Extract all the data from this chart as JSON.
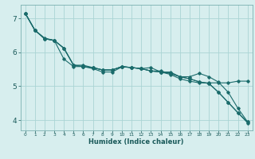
{
  "title": "",
  "xlabel": "Humidex (Indice chaleur)",
  "ylabel": "",
  "background_color": "#d7eeee",
  "grid_color": "#aad4d4",
  "line_color": "#1a6b6b",
  "xlim": [
    -0.5,
    23.5
  ],
  "ylim": [
    3.7,
    7.4
  ],
  "xticks": [
    0,
    1,
    2,
    3,
    4,
    5,
    6,
    7,
    8,
    9,
    10,
    11,
    12,
    13,
    14,
    15,
    16,
    17,
    18,
    19,
    20,
    21,
    22,
    23
  ],
  "yticks": [
    4,
    5,
    6,
    7
  ],
  "lines": [
    {
      "x": [
        0,
        1,
        2,
        3,
        4,
        5,
        6,
        7,
        8,
        9,
        10,
        11,
        12,
        13,
        14,
        15,
        16,
        17,
        18,
        19,
        20,
        21,
        22,
        23
      ],
      "y": [
        7.15,
        6.65,
        6.4,
        6.35,
        5.8,
        5.58,
        5.58,
        5.52,
        5.42,
        5.42,
        5.57,
        5.55,
        5.52,
        5.55,
        5.42,
        5.42,
        5.28,
        5.22,
        5.13,
        5.08,
        4.82,
        4.52,
        4.22,
        3.92
      ]
    },
    {
      "x": [
        0,
        1,
        2,
        3,
        4,
        5,
        6,
        7,
        8,
        9,
        10,
        11,
        12,
        13,
        14,
        15,
        16,
        17,
        18,
        19,
        20,
        21,
        22,
        23
      ],
      "y": [
        7.15,
        6.65,
        6.4,
        6.35,
        6.12,
        5.62,
        5.62,
        5.55,
        5.48,
        5.48,
        5.58,
        5.55,
        5.52,
        5.45,
        5.42,
        5.35,
        5.22,
        5.15,
        5.1,
        5.1,
        5.1,
        5.1,
        5.15,
        5.15
      ]
    },
    {
      "x": [
        0,
        1,
        2,
        3,
        4,
        5,
        6,
        7,
        8,
        9,
        10,
        11,
        12,
        13,
        14,
        15,
        16,
        17,
        18,
        19,
        20,
        21,
        22,
        23
      ],
      "y": [
        7.15,
        6.65,
        6.4,
        6.35,
        6.12,
        5.62,
        5.58,
        5.55,
        5.48,
        5.48,
        5.58,
        5.55,
        5.52,
        5.45,
        5.45,
        5.38,
        5.28,
        5.28,
        5.38,
        5.28,
        5.12,
        4.82,
        4.35,
        3.95
      ]
    },
    {
      "x": [
        0,
        1,
        2,
        3,
        4,
        5,
        6,
        7,
        8,
        9,
        10,
        11,
        12,
        13,
        14,
        15,
        16,
        17,
        18,
        19,
        20,
        21,
        22,
        23
      ],
      "y": [
        7.15,
        6.65,
        6.42,
        6.35,
        6.12,
        5.62,
        5.58,
        5.55,
        5.48,
        5.48,
        5.58,
        5.55,
        5.52,
        5.45,
        5.42,
        5.38,
        5.28,
        5.22,
        5.13,
        5.08,
        4.82,
        4.52,
        4.22,
        3.95
      ]
    }
  ]
}
